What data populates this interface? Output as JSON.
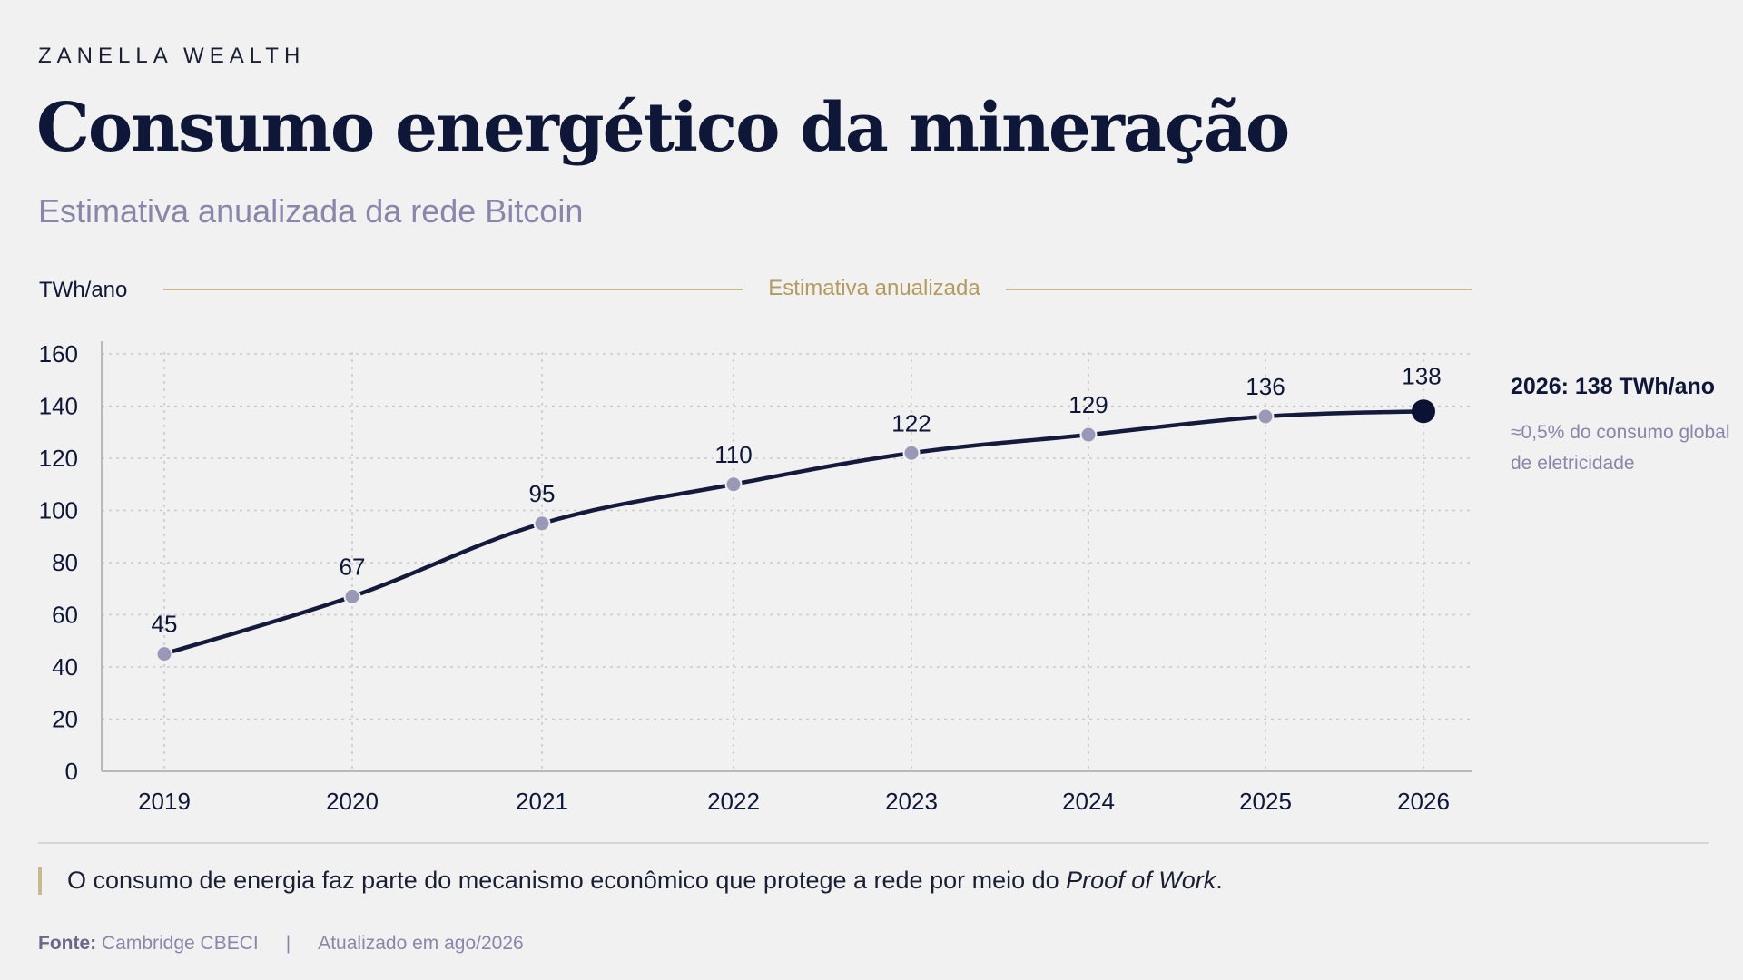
{
  "brand": "ZANELLA WEALTH",
  "title": "Consumo energético da mineração",
  "subtitle": "Estimativa anualizada da rede Bitcoin",
  "chart_data": {
    "type": "line",
    "ylabel": "TWh/ano",
    "band_label": "Estimativa anualizada",
    "categories": [
      "2019",
      "2020",
      "2021",
      "2022",
      "2023",
      "2024",
      "2025",
      "2026"
    ],
    "values": [
      45,
      67,
      95,
      110,
      122,
      129,
      136,
      138
    ],
    "data_labels": [
      "45",
      "67",
      "95",
      "110",
      "122",
      "129",
      "136",
      "138"
    ],
    "ylim": [
      0,
      160
    ],
    "yticks": [
      "0",
      "20",
      "40",
      "60",
      "80",
      "100",
      "120",
      "140",
      "160"
    ],
    "grid": true,
    "highlight_last": true,
    "colors": {
      "line": "#141a3c",
      "point": "#9b98b7",
      "highlight": "#0b1233",
      "grid": "#c9c9c9",
      "axis": "#b9b9b9",
      "band": "#c9b98f"
    }
  },
  "callout": {
    "title": "2026: 138 TWh/ano",
    "note": "≈0,5% do consumo global de eletricidade"
  },
  "note": {
    "text": "O consumo de energia faz parte do mecanismo econômico que protege a rede por meio do ",
    "emphasis": "Proof of Work",
    "end": "."
  },
  "footer": {
    "source_label": "Fonte:",
    "source": "Cambridge CBECI",
    "separator": "|",
    "updated": "Atualizado em ago/2026"
  }
}
